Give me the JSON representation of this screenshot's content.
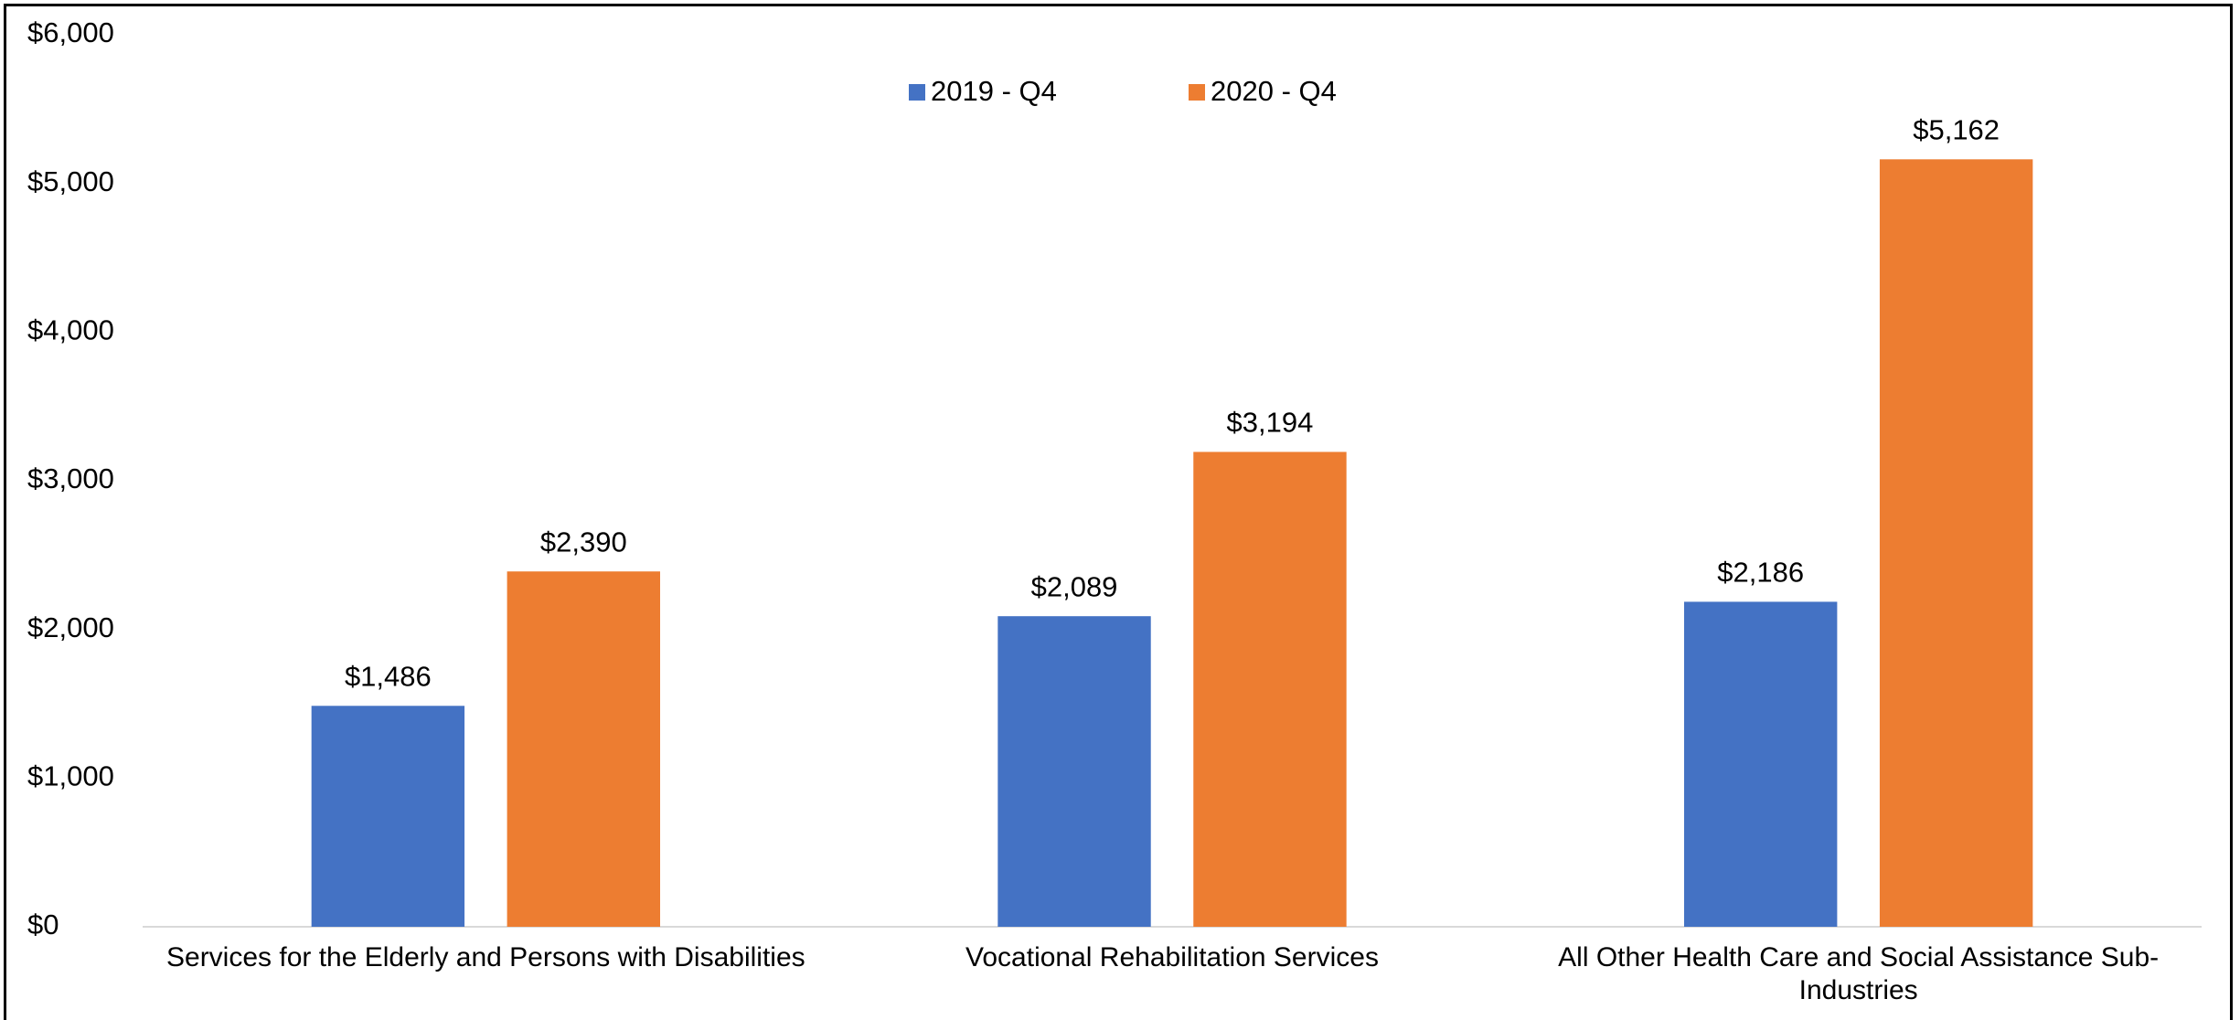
{
  "chart_data": {
    "type": "bar",
    "categories": [
      "Services for the Elderly and Persons with Disabilities",
      "Vocational Rehabilitation Services",
      "All Other Health Care and Social Assistance Sub-Industries"
    ],
    "series": [
      {
        "name": "2019 - Q4",
        "color": "#4472c4",
        "values": [
          1486,
          2089,
          2186
        ],
        "value_labels": [
          "$1,486",
          "$2,089",
          "$2,186"
        ]
      },
      {
        "name": "2020 - Q4",
        "color": "#ed7d31",
        "values": [
          2390,
          3194,
          5162
        ],
        "value_labels": [
          "$2,390",
          "$3,194",
          "$5,162"
        ]
      }
    ],
    "ylim": [
      0,
      6000
    ],
    "yticks": [
      {
        "value": 0,
        "label": "$0"
      },
      {
        "value": 1000,
        "label": "$1,000"
      },
      {
        "value": 2000,
        "label": "$2,000"
      },
      {
        "value": 3000,
        "label": "$3,000"
      },
      {
        "value": 4000,
        "label": "$4,000"
      },
      {
        "value": 5000,
        "label": "$5,000"
      },
      {
        "value": 6000,
        "label": "$6,000"
      }
    ],
    "grid": false,
    "legend": "top"
  }
}
